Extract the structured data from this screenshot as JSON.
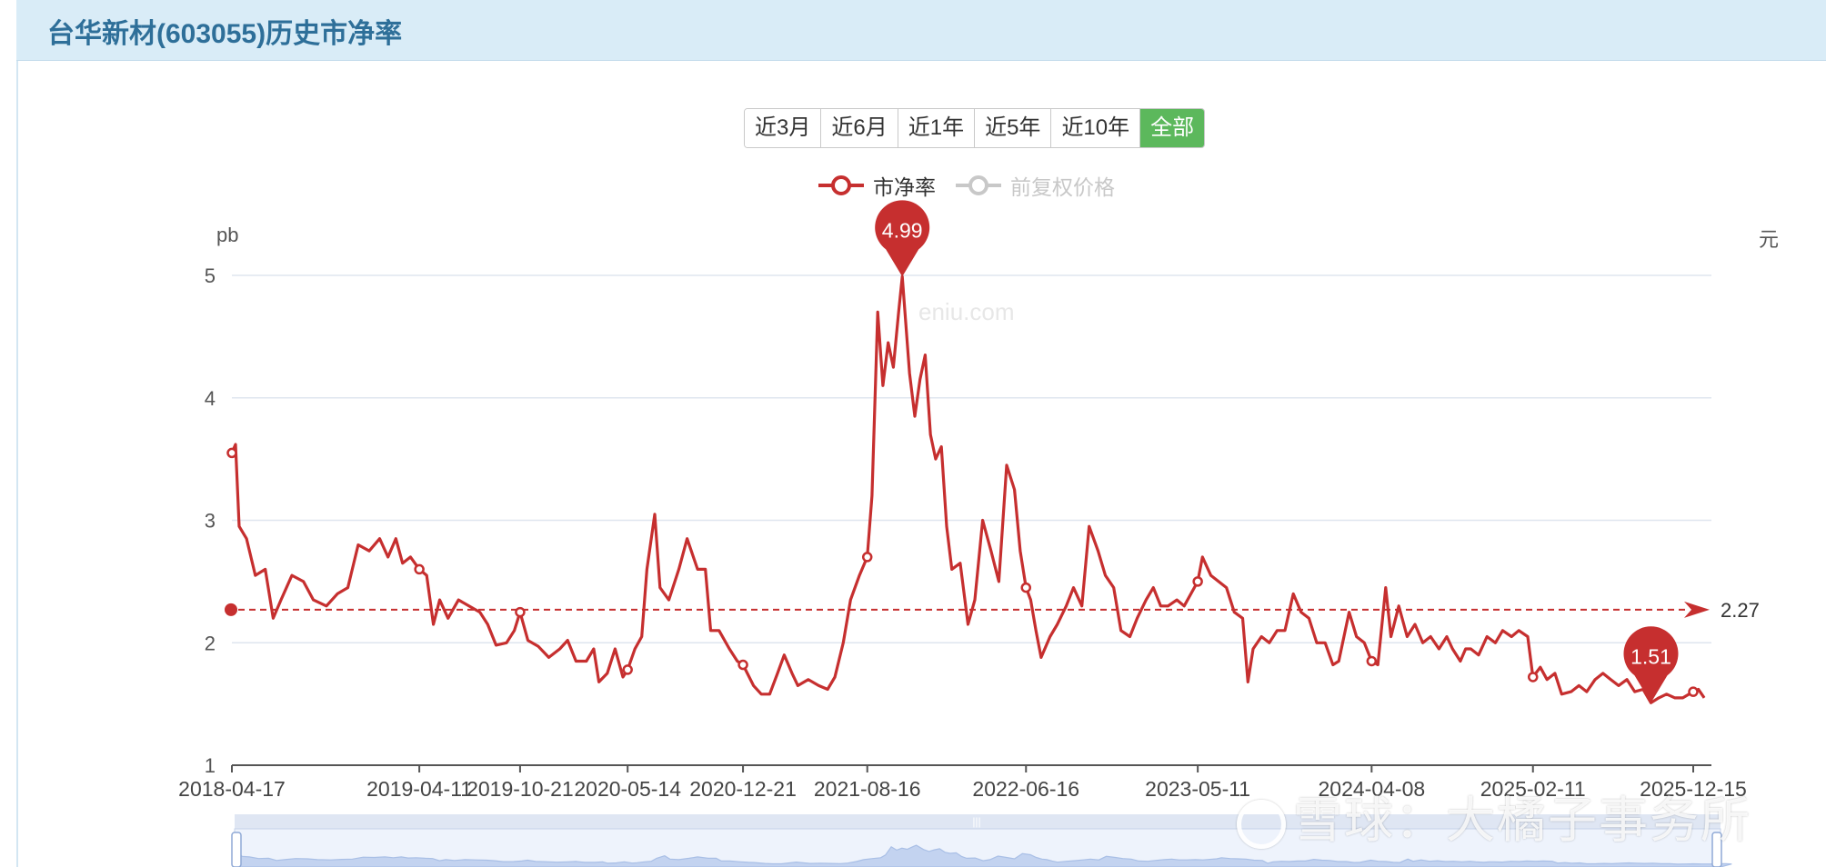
{
  "page": {
    "title": "台华新材(603055)历史市净率"
  },
  "range_buttons": [
    {
      "label": "近3月",
      "active": false
    },
    {
      "label": "近6月",
      "active": false
    },
    {
      "label": "近1年",
      "active": false
    },
    {
      "label": "近5年",
      "active": false
    },
    {
      "label": "近10年",
      "active": false
    },
    {
      "label": "全部",
      "active": true
    }
  ],
  "legend": [
    {
      "label": "市净率",
      "enabled": true,
      "color": "#c62f2f"
    },
    {
      "label": "前复权价格",
      "enabled": false,
      "color": "#c8c8c8"
    }
  ],
  "axes": {
    "left_unit": "pb",
    "right_unit": "元"
  },
  "site_mark": "eniu.com",
  "watermark": "雪球：大橘子事务所",
  "chart_data": {
    "type": "line",
    "title": "",
    "xlabel": "",
    "ylabel": "pb",
    "ylim": [
      1,
      5
    ],
    "yticks": [
      1,
      2,
      3,
      4,
      5
    ],
    "x_tick_labels": [
      "2018-04-17",
      "2019-04-11",
      "2019-10-21",
      "2020-05-14",
      "2020-12-21",
      "2021-08-16",
      "2022-06-16",
      "2023-05-11",
      "2024-04-08",
      "2025-02-11",
      "2025-12-15"
    ],
    "grid": true,
    "legend_position": "top-center",
    "series": [
      {
        "name": "市净率",
        "color": "#c62f2f",
        "points": [
          [
            "2018-04-17",
            3.55
          ],
          [
            "2018-04-24",
            3.62
          ],
          [
            "2018-05-01",
            2.95
          ],
          [
            "2018-05-15",
            2.85
          ],
          [
            "2018-06-01",
            2.55
          ],
          [
            "2018-06-20",
            2.6
          ],
          [
            "2018-07-05",
            2.2
          ],
          [
            "2018-07-20",
            2.35
          ],
          [
            "2018-08-10",
            2.55
          ],
          [
            "2018-09-01",
            2.5
          ],
          [
            "2018-09-20",
            2.35
          ],
          [
            "2018-10-15",
            2.3
          ],
          [
            "2018-11-05",
            2.4
          ],
          [
            "2018-11-25",
            2.45
          ],
          [
            "2018-12-15",
            2.8
          ],
          [
            "2019-01-05",
            2.75
          ],
          [
            "2019-01-25",
            2.85
          ],
          [
            "2019-02-10",
            2.7
          ],
          [
            "2019-02-25",
            2.85
          ],
          [
            "2019-03-10",
            2.65
          ],
          [
            "2019-03-25",
            2.7
          ],
          [
            "2019-04-11",
            2.6
          ],
          [
            "2019-04-25",
            2.55
          ],
          [
            "2019-05-08",
            2.15
          ],
          [
            "2019-05-20",
            2.35
          ],
          [
            "2019-06-05",
            2.2
          ],
          [
            "2019-06-25",
            2.35
          ],
          [
            "2019-07-15",
            2.3
          ],
          [
            "2019-08-05",
            2.25
          ],
          [
            "2019-08-20",
            2.15
          ],
          [
            "2019-09-05",
            1.98
          ],
          [
            "2019-09-25",
            2.0
          ],
          [
            "2019-10-10",
            2.1
          ],
          [
            "2019-10-21",
            2.25
          ],
          [
            "2019-11-05",
            2.02
          ],
          [
            "2019-11-25",
            1.97
          ],
          [
            "2019-12-15",
            1.88
          ],
          [
            "2020-01-05",
            1.95
          ],
          [
            "2020-01-20",
            2.02
          ],
          [
            "2020-02-05",
            1.85
          ],
          [
            "2020-02-25",
            1.85
          ],
          [
            "2020-03-10",
            1.95
          ],
          [
            "2020-03-20",
            1.68
          ],
          [
            "2020-04-05",
            1.75
          ],
          [
            "2020-04-20",
            1.95
          ],
          [
            "2020-05-05",
            1.72
          ],
          [
            "2020-05-14",
            1.78
          ],
          [
            "2020-05-28",
            1.95
          ],
          [
            "2020-06-10",
            2.05
          ],
          [
            "2020-06-20",
            2.6
          ],
          [
            "2020-07-05",
            3.05
          ],
          [
            "2020-07-15",
            2.45
          ],
          [
            "2020-08-01",
            2.35
          ],
          [
            "2020-08-20",
            2.6
          ],
          [
            "2020-09-05",
            2.85
          ],
          [
            "2020-09-25",
            2.6
          ],
          [
            "2020-10-10",
            2.6
          ],
          [
            "2020-10-20",
            2.1
          ],
          [
            "2020-11-05",
            2.1
          ],
          [
            "2020-11-25",
            1.95
          ],
          [
            "2020-12-10",
            1.85
          ],
          [
            "2020-12-21",
            1.82
          ],
          [
            "2021-01-10",
            1.65
          ],
          [
            "2021-01-25",
            1.58
          ],
          [
            "2021-02-10",
            1.58
          ],
          [
            "2021-02-25",
            1.75
          ],
          [
            "2021-03-10",
            1.9
          ],
          [
            "2021-03-25",
            1.75
          ],
          [
            "2021-04-05",
            1.65
          ],
          [
            "2021-04-25",
            1.7
          ],
          [
            "2021-05-15",
            1.65
          ],
          [
            "2021-06-01",
            1.62
          ],
          [
            "2021-06-15",
            1.72
          ],
          [
            "2021-07-01",
            2.0
          ],
          [
            "2021-07-15",
            2.35
          ],
          [
            "2021-08-01",
            2.55
          ],
          [
            "2021-08-16",
            2.7
          ],
          [
            "2021-08-25",
            3.2
          ],
          [
            "2021-09-05",
            4.7
          ],
          [
            "2021-09-15",
            4.1
          ],
          [
            "2021-09-25",
            4.45
          ],
          [
            "2021-10-05",
            4.25
          ],
          [
            "2021-10-15",
            4.7
          ],
          [
            "2021-10-22",
            4.99
          ],
          [
            "2021-11-05",
            4.2
          ],
          [
            "2021-11-15",
            3.85
          ],
          [
            "2021-11-25",
            4.15
          ],
          [
            "2021-12-05",
            4.35
          ],
          [
            "2021-12-15",
            3.7
          ],
          [
            "2021-12-25",
            3.5
          ],
          [
            "2022-01-05",
            3.6
          ],
          [
            "2022-01-15",
            2.95
          ],
          [
            "2022-01-25",
            2.6
          ],
          [
            "2022-02-10",
            2.65
          ],
          [
            "2022-02-25",
            2.15
          ],
          [
            "2022-03-10",
            2.35
          ],
          [
            "2022-03-25",
            3.0
          ],
          [
            "2022-04-10",
            2.75
          ],
          [
            "2022-04-25",
            2.5
          ],
          [
            "2022-05-10",
            3.45
          ],
          [
            "2022-05-25",
            3.25
          ],
          [
            "2022-06-05",
            2.75
          ],
          [
            "2022-06-16",
            2.45
          ],
          [
            "2022-06-25",
            2.35
          ],
          [
            "2022-07-05",
            2.1
          ],
          [
            "2022-07-15",
            1.88
          ],
          [
            "2022-08-01",
            2.05
          ],
          [
            "2022-08-15",
            2.15
          ],
          [
            "2022-09-01",
            2.3
          ],
          [
            "2022-09-15",
            2.45
          ],
          [
            "2022-10-01",
            2.3
          ],
          [
            "2022-10-15",
            2.95
          ],
          [
            "2022-11-01",
            2.75
          ],
          [
            "2022-11-15",
            2.55
          ],
          [
            "2022-12-01",
            2.45
          ],
          [
            "2022-12-15",
            2.1
          ],
          [
            "2023-01-01",
            2.05
          ],
          [
            "2023-01-15",
            2.2
          ],
          [
            "2023-02-01",
            2.35
          ],
          [
            "2023-02-15",
            2.45
          ],
          [
            "2023-03-01",
            2.3
          ],
          [
            "2023-03-15",
            2.3
          ],
          [
            "2023-04-01",
            2.35
          ],
          [
            "2023-04-15",
            2.3
          ],
          [
            "2023-05-11",
            2.5
          ],
          [
            "2023-05-20",
            2.7
          ],
          [
            "2023-06-05",
            2.55
          ],
          [
            "2023-06-20",
            2.5
          ],
          [
            "2023-07-05",
            2.45
          ],
          [
            "2023-07-20",
            2.25
          ],
          [
            "2023-08-05",
            2.2
          ],
          [
            "2023-08-15",
            1.68
          ],
          [
            "2023-08-25",
            1.95
          ],
          [
            "2023-09-10",
            2.05
          ],
          [
            "2023-09-25",
            2.0
          ],
          [
            "2023-10-10",
            2.1
          ],
          [
            "2023-10-25",
            2.1
          ],
          [
            "2023-11-10",
            2.4
          ],
          [
            "2023-11-25",
            2.25
          ],
          [
            "2023-12-10",
            2.2
          ],
          [
            "2023-12-25",
            2.0
          ],
          [
            "2024-01-10",
            2.0
          ],
          [
            "2024-01-25",
            1.82
          ],
          [
            "2024-02-05",
            1.85
          ],
          [
            "2024-02-25",
            2.25
          ],
          [
            "2024-03-10",
            2.05
          ],
          [
            "2024-03-25",
            2.0
          ],
          [
            "2024-04-08",
            1.85
          ],
          [
            "2024-04-20",
            1.82
          ],
          [
            "2024-05-05",
            2.45
          ],
          [
            "2024-05-15",
            2.05
          ],
          [
            "2024-05-30",
            2.3
          ],
          [
            "2024-06-15",
            2.05
          ],
          [
            "2024-06-30",
            2.15
          ],
          [
            "2024-07-15",
            2.0
          ],
          [
            "2024-07-30",
            2.05
          ],
          [
            "2024-08-15",
            1.95
          ],
          [
            "2024-08-30",
            2.05
          ],
          [
            "2024-09-10",
            1.95
          ],
          [
            "2024-09-25",
            1.85
          ],
          [
            "2024-10-05",
            1.95
          ],
          [
            "2024-10-15",
            1.95
          ],
          [
            "2024-10-30",
            1.9
          ],
          [
            "2024-11-15",
            2.05
          ],
          [
            "2024-12-01",
            2.0
          ],
          [
            "2024-12-15",
            2.1
          ],
          [
            "2025-01-01",
            2.05
          ],
          [
            "2025-01-15",
            2.1
          ],
          [
            "2025-02-01",
            2.05
          ],
          [
            "2025-02-11",
            1.72
          ],
          [
            "2025-02-25",
            1.8
          ],
          [
            "2025-03-10",
            1.7
          ],
          [
            "2025-03-25",
            1.75
          ],
          [
            "2025-04-07",
            1.58
          ],
          [
            "2025-04-25",
            1.6
          ],
          [
            "2025-05-10",
            1.65
          ],
          [
            "2025-05-25",
            1.6
          ],
          [
            "2025-06-10",
            1.7
          ],
          [
            "2025-06-25",
            1.75
          ],
          [
            "2025-07-10",
            1.7
          ],
          [
            "2025-07-25",
            1.65
          ],
          [
            "2025-08-10",
            1.7
          ],
          [
            "2025-08-25",
            1.6
          ],
          [
            "2025-09-10",
            1.62
          ],
          [
            "2025-09-25",
            1.51
          ],
          [
            "2025-10-10",
            1.55
          ],
          [
            "2025-10-25",
            1.58
          ],
          [
            "2025-11-10",
            1.55
          ],
          [
            "2025-11-25",
            1.55
          ],
          [
            "2025-12-15",
            1.6
          ],
          [
            "2025-12-25",
            1.62
          ],
          [
            "2026-01-05",
            1.55
          ]
        ]
      }
    ],
    "mark_points": [
      {
        "label": "4.99",
        "date": "2021-10-22",
        "value": 4.99
      },
      {
        "label": "1.51",
        "date": "2025-09-25",
        "value": 1.51
      }
    ],
    "mark_line": {
      "label": "2.27",
      "value": 2.27,
      "style": "dashed"
    }
  }
}
